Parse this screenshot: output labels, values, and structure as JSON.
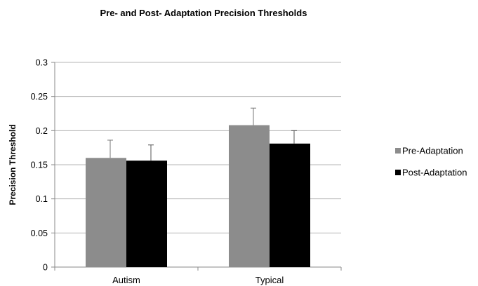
{
  "chart_data": {
    "type": "bar",
    "title": "Pre- and Post- Adaptation Precision Thresholds",
    "xlabel": "",
    "ylabel": "Precision Threshold",
    "categories": [
      "Autism",
      "Typical"
    ],
    "series": [
      {
        "name": "Pre-Adaptation",
        "color": "#8c8c8c",
        "values": [
          0.16,
          0.208
        ],
        "error": [
          0.026,
          0.025
        ]
      },
      {
        "name": "Post-Adaptation",
        "color": "#000000",
        "values": [
          0.156,
          0.181
        ],
        "error": [
          0.023,
          0.019
        ]
      }
    ],
    "ylim": [
      0,
      0.3
    ],
    "yticks": [
      0,
      0.05,
      0.1,
      0.15,
      0.2,
      0.25,
      0.3
    ],
    "ytick_labels": [
      "0",
      "0.05",
      "0.1",
      "0.15",
      "0.2",
      "0.25",
      "0.3"
    ],
    "grid": true,
    "legend_position": "right"
  }
}
